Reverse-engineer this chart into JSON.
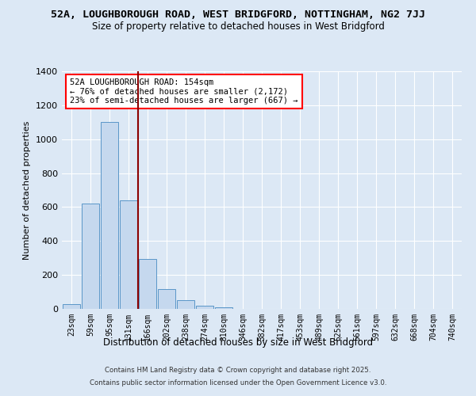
{
  "title": "52A, LOUGHBOROUGH ROAD, WEST BRIDGFORD, NOTTINGHAM, NG2 7JJ",
  "subtitle": "Size of property relative to detached houses in West Bridgford",
  "bar_labels": [
    "23sqm",
    "59sqm",
    "95sqm",
    "131sqm",
    "166sqm",
    "202sqm",
    "238sqm",
    "274sqm",
    "310sqm",
    "346sqm",
    "382sqm",
    "417sqm",
    "453sqm",
    "489sqm",
    "525sqm",
    "561sqm",
    "597sqm",
    "632sqm",
    "668sqm",
    "704sqm",
    "740sqm"
  ],
  "bar_values": [
    30,
    620,
    1100,
    640,
    295,
    115,
    50,
    20,
    10,
    0,
    0,
    0,
    0,
    0,
    0,
    0,
    0,
    0,
    0,
    0,
    0
  ],
  "bar_color": "#c5d8ee",
  "bar_edge_color": "#5a96c8",
  "ylabel": "Number of detached properties",
  "xlabel": "Distribution of detached houses by size in West Bridgford",
  "ylim": [
    0,
    1400
  ],
  "yticks": [
    0,
    200,
    400,
    600,
    800,
    1000,
    1200,
    1400
  ],
  "vline_x": 3.5,
  "vline_color": "#8b0000",
  "annotation_title": "52A LOUGHBOROUGH ROAD: 154sqm",
  "annotation_line1": "← 76% of detached houses are smaller (2,172)",
  "annotation_line2": "23% of semi-detached houses are larger (667) →",
  "bg_color": "#dce8f5",
  "plot_bg_color": "#dce8f5",
  "footer_line1": "Contains HM Land Registry data © Crown copyright and database right 2025.",
  "footer_line2": "Contains public sector information licensed under the Open Government Licence v3.0."
}
